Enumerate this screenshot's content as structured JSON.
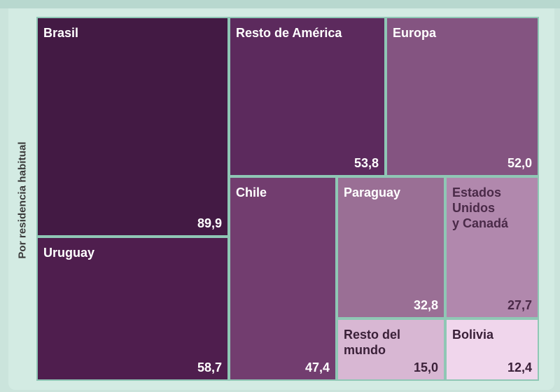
{
  "chart_data": {
    "type": "treemap",
    "ylabel": "Por residencia habitual",
    "items": [
      {
        "label": "Brasil",
        "value": "89,9",
        "color": "#431a44",
        "text_color": "#ffffff"
      },
      {
        "label": "Uruguay",
        "value": "58,7",
        "color": "#4f1e4e",
        "text_color": "#ffffff"
      },
      {
        "label": "Resto de América",
        "value": "53,8",
        "color": "#5c2a5d",
        "text_color": "#ffffff"
      },
      {
        "label": "Europa",
        "value": "52,0",
        "color": "#845481",
        "text_color": "#ffffff"
      },
      {
        "label": "Chile",
        "value": "47,4",
        "color": "#723d6f",
        "text_color": "#ffffff"
      },
      {
        "label": "Paraguay",
        "value": "32,8",
        "color": "#9a6f95",
        "text_color": "#ffffff"
      },
      {
        "label": "Estados\nUnidos\ny Canadá",
        "value": "27,7",
        "color": "#b188ad",
        "text_color": "#4a2a48"
      },
      {
        "label": "Resto del mundo",
        "value": "15,0",
        "color": "#d8b7d3",
        "text_color": "#3a2038"
      },
      {
        "label": "Bolivia",
        "value": "12,4",
        "color": "#f0d6ec",
        "text_color": "#3a2038"
      }
    ]
  }
}
